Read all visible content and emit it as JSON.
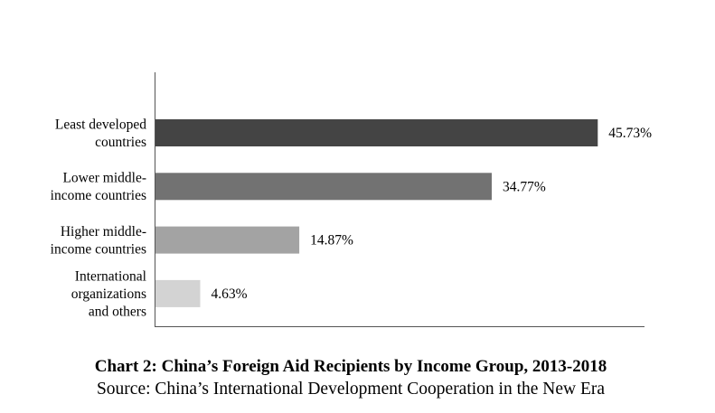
{
  "chart_data": {
    "type": "bar",
    "orientation": "horizontal",
    "title": "Chart 2: China’s Foreign Aid Recipients by Income Group, 2013-2018",
    "source": "Source: China’s International Development Cooperation in the New Era",
    "categories": [
      [
        "Least developed",
        "countries"
      ],
      [
        "Lower middle-",
        "income countries"
      ],
      [
        "Higher middle-",
        "income countries"
      ],
      [
        "International",
        "organizations",
        "and others"
      ]
    ],
    "values": [
      45.73,
      34.77,
      14.87,
      4.63
    ],
    "value_labels": [
      "45.73%",
      "34.77%",
      "14.87%",
      "4.63%"
    ],
    "bar_colors": [
      "#444444",
      "#727272",
      "#a3a3a3",
      "#d3d3d3"
    ],
    "xlim": [
      0,
      50
    ],
    "grid": false,
    "legend": "none"
  }
}
